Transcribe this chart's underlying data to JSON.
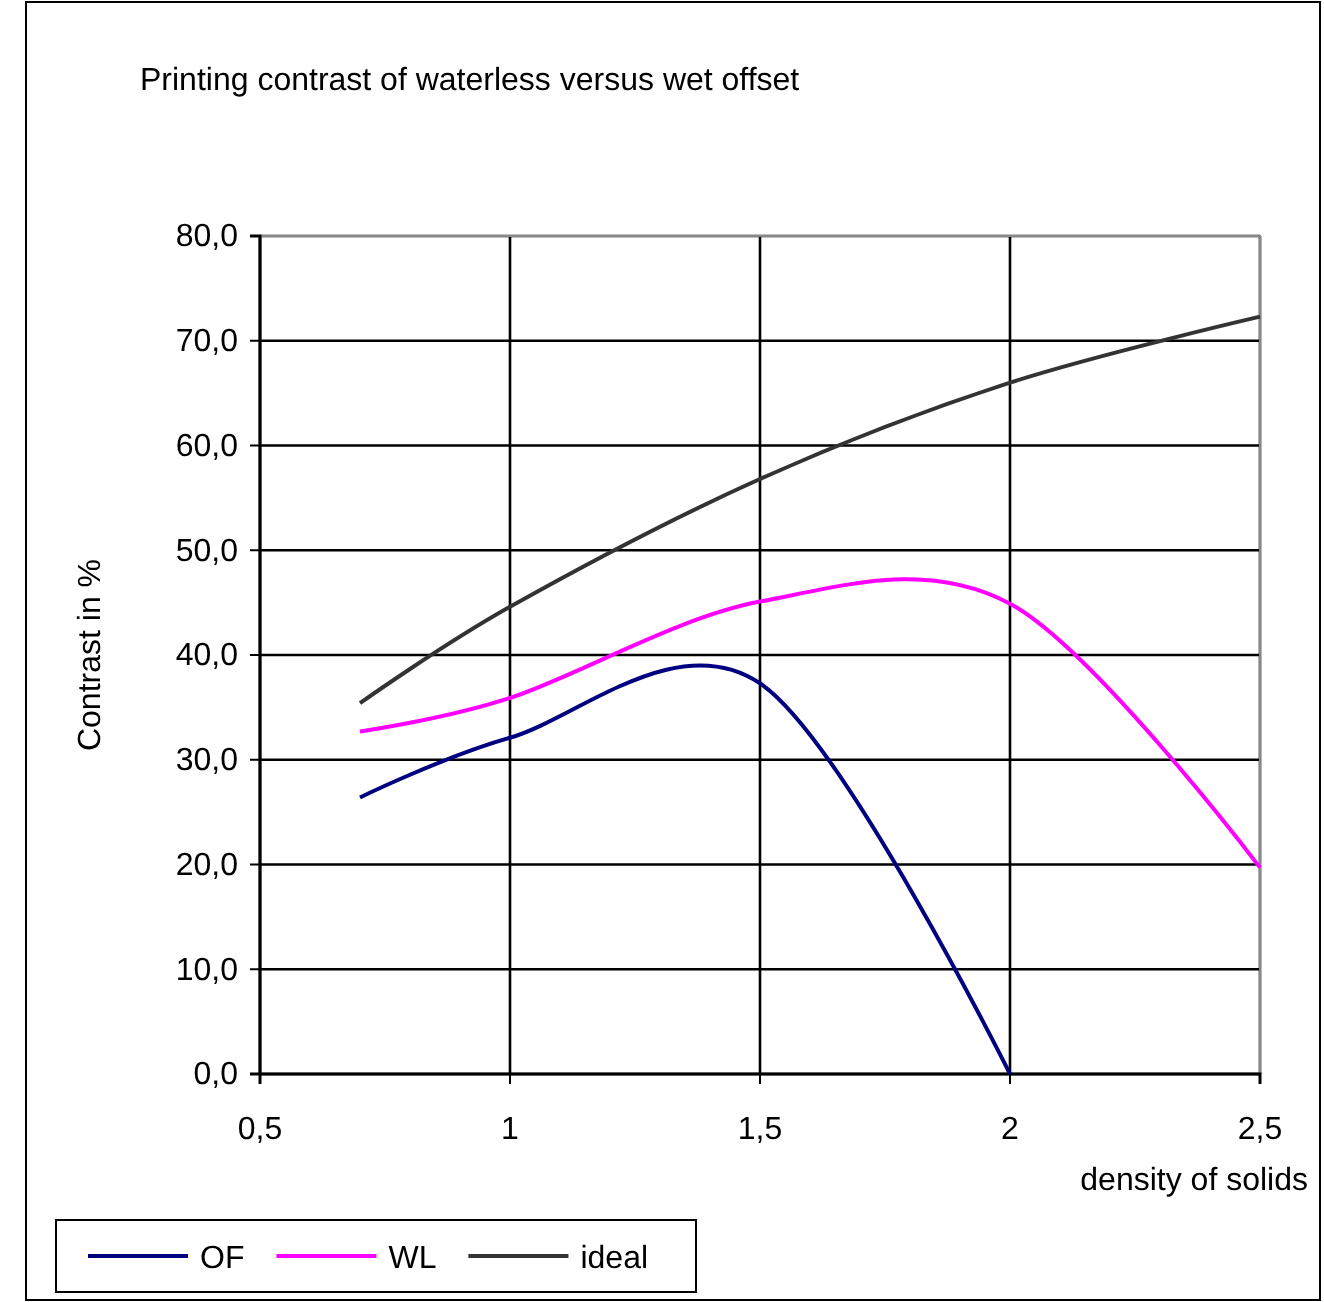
{
  "chart_data": {
    "type": "line",
    "title": "Printing contrast of waterless versus wet offset",
    "xlabel": "density of solids",
    "ylabel": "Contrast in %",
    "x": [
      0.7,
      1,
      1.5,
      2,
      2.5
    ],
    "series": [
      {
        "name": "OF",
        "color": "#000080",
        "values": [
          26.4,
          32.1,
          37.3,
          0,
          null
        ]
      },
      {
        "name": "WL",
        "color": "#ff00ff",
        "values": [
          32.7,
          35.9,
          45.1,
          44.9,
          19.7
        ]
      },
      {
        "name": "ideal",
        "color": "#333333",
        "values": [
          35.4,
          44.6,
          56.8,
          66.0,
          72.3
        ]
      }
    ],
    "xlim": [
      0.5,
      2.5
    ],
    "xticks": [
      {
        "value": 0.5,
        "label": "0,5"
      },
      1,
      {
        "value": 1.5,
        "label": "1,5"
      },
      2,
      {
        "value": 2.5,
        "label": "2,5"
      }
    ],
    "ylim": [
      0,
      80
    ],
    "yticks": [
      {
        "value": 0,
        "label": "0,0"
      },
      {
        "value": 10,
        "label": "10,0"
      },
      {
        "value": 20,
        "label": "20,0"
      },
      {
        "value": 30,
        "label": "30,0"
      },
      {
        "value": 40,
        "label": "40,0"
      },
      {
        "value": 50,
        "label": "50,0"
      },
      {
        "value": 60,
        "label": "60,0"
      },
      {
        "value": 70,
        "label": "70,0"
      },
      {
        "value": 80,
        "label": "80,0"
      }
    ],
    "grid": true,
    "legend": "bottom left",
    "marker": "none",
    "line_style": "solid"
  }
}
